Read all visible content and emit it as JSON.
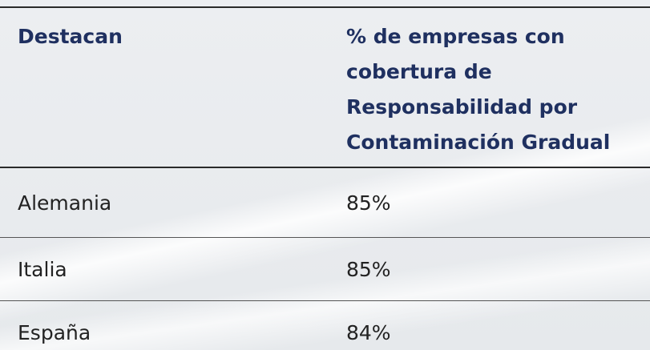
{
  "table": {
    "header": [
      "Destacan",
      [
        "% de empresas con",
        "cobertura de",
        "Responsabilidad por",
        "Contaminación Gradual"
      ]
    ],
    "rows": [
      [
        "Alemania",
        "85%"
      ],
      [
        "Italia",
        "85%"
      ],
      [
        "España",
        "84%"
      ]
    ]
  }
}
